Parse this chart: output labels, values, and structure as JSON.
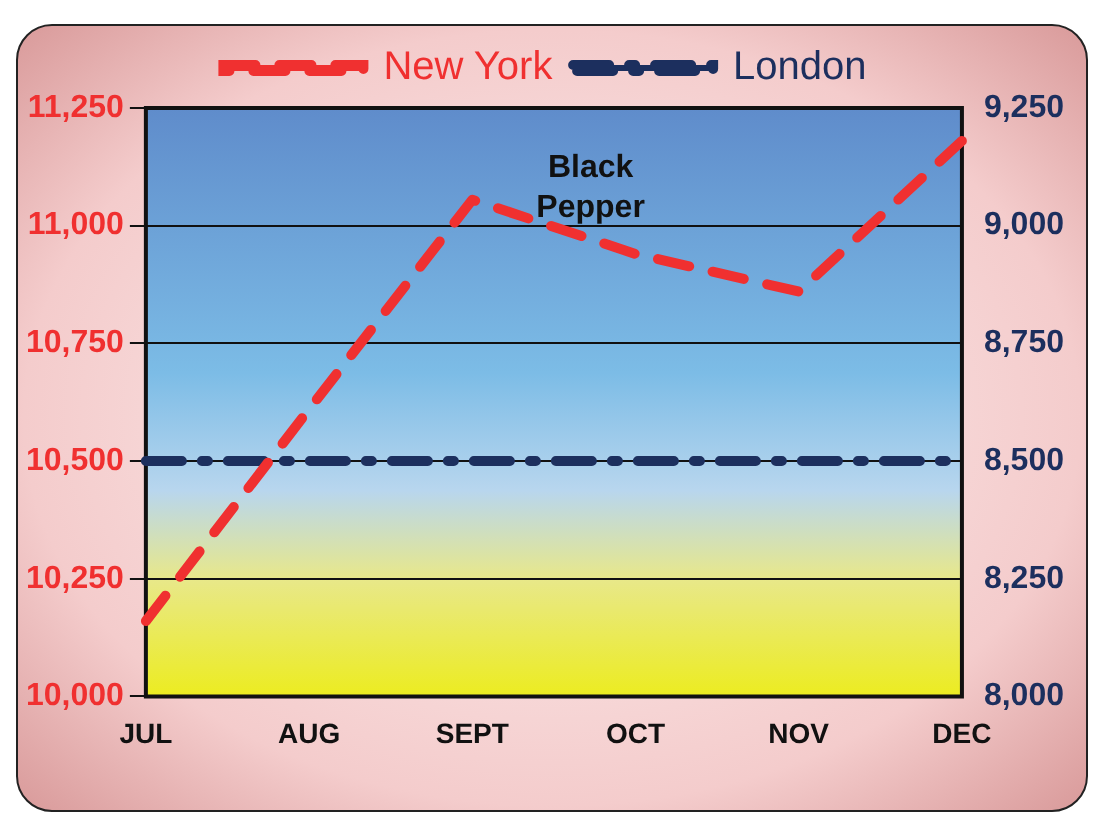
{
  "chart_data": {
    "type": "line",
    "categories": [
      "JUL",
      "AUG",
      "SEPT",
      "OCT",
      "NOV",
      "DEC"
    ],
    "series": [
      {
        "name": "New York",
        "color": "#f03030",
        "values": [
          10160,
          10610,
          11055,
          10940,
          10860,
          11180
        ],
        "line_style": "dashed"
      },
      {
        "name": "London",
        "color": "#1c2f5e",
        "values": [
          8500,
          8500,
          8500,
          8500,
          8500,
          8500
        ],
        "axis": "y2",
        "line_style": "dashdot"
      }
    ],
    "ylim": [
      10000,
      11250
    ],
    "yticks": [
      {
        "value": 10000,
        "label": "10,000"
      },
      {
        "value": 10250,
        "label": "10,250"
      },
      {
        "value": 10500,
        "label": "10,500"
      },
      {
        "value": 10750,
        "label": "10,750"
      },
      {
        "value": 11000,
        "label": "11,000"
      },
      {
        "value": 11250,
        "label": "11,250"
      }
    ],
    "y2lim": [
      8000,
      9250
    ],
    "y2ticks": [
      {
        "value": 8000,
        "label": "8,000"
      },
      {
        "value": 8250,
        "label": "8,250"
      },
      {
        "value": 8500,
        "label": "8,500"
      },
      {
        "value": 8750,
        "label": "8,750"
      },
      {
        "value": 9000,
        "label": "9,000"
      },
      {
        "value": 9250,
        "label": "9,250"
      }
    ],
    "annotations": [
      "Black Pepper"
    ],
    "grid": "y",
    "legend": "top",
    "marker": "none"
  }
}
